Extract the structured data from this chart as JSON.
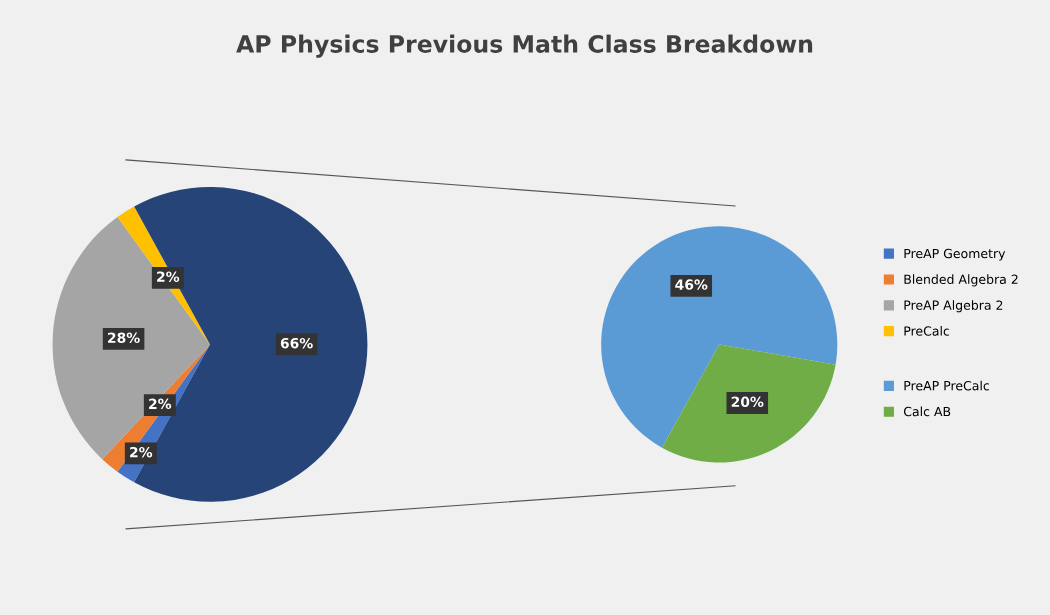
{
  "chart_data": [
    {
      "type": "pie",
      "title": "AP Physics Previous Math Class Breakdown",
      "categories": [
        "PreAP Geometry",
        "Blended Algebra 2",
        "PreAP Algebra 2",
        "PreCalc",
        null
      ],
      "values": [
        2,
        2,
        28,
        2,
        66
      ],
      "value_labels": [
        "2%",
        "2%",
        "28%",
        "2%",
        "66%"
      ],
      "colors": [
        "#4472c4",
        "#ed7d31",
        "#a5a5a5",
        "#ffc000",
        "#264478"
      ],
      "legend": "right"
    },
    {
      "type": "pie",
      "categories": [
        "PreAP PreCalc",
        "Calc AB"
      ],
      "values": [
        46,
        20
      ],
      "value_labels": [
        "46%",
        "20%"
      ],
      "colors": [
        "#5b9bd5",
        "#70ad47"
      ],
      "legend": "right"
    }
  ]
}
